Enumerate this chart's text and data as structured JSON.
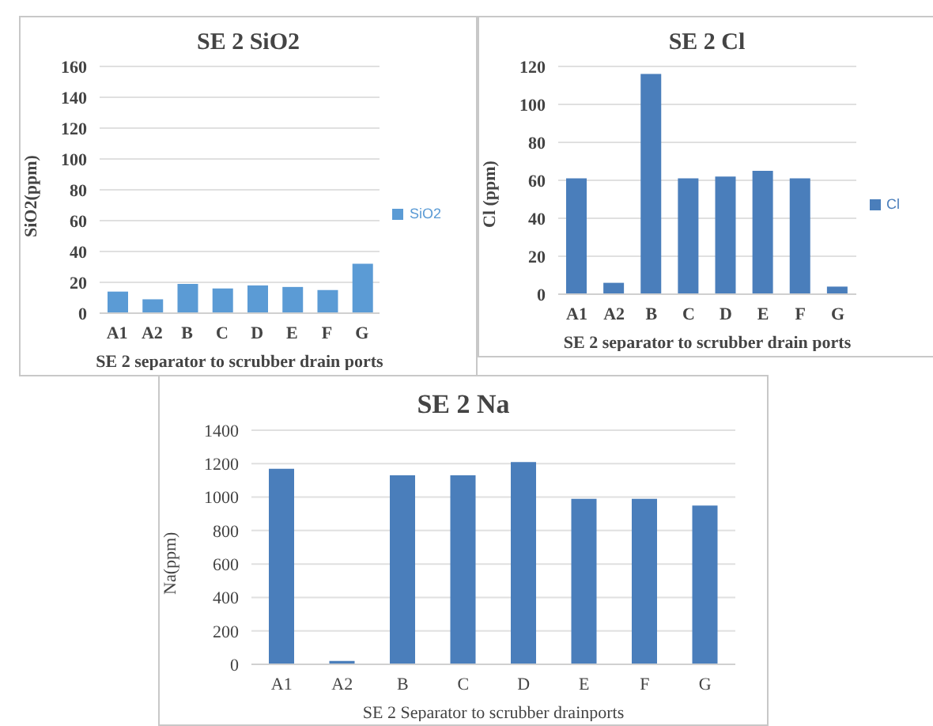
{
  "chart_data": [
    {
      "type": "bar",
      "title": "SE 2 SiO2",
      "xlabel": "SE 2 separator to scrubber drain ports",
      "ylabel": "SiO2(ppm)",
      "categories": [
        "A1",
        "A2",
        "B",
        "C",
        "D",
        "E",
        "F",
        "G"
      ],
      "series": [
        {
          "name": "SiO2",
          "color": "#5b9bd5",
          "values": [
            14,
            9,
            19,
            16,
            18,
            17,
            15,
            32
          ]
        }
      ],
      "ylim": [
        0,
        160
      ],
      "yticks": [
        0,
        20,
        40,
        60,
        80,
        100,
        120,
        140,
        160
      ],
      "grid": "y",
      "legend": "right"
    },
    {
      "type": "bar",
      "title": "SE 2 Cl",
      "xlabel": "SE 2 separator to scrubber drain ports",
      "ylabel": "Cl (ppm)",
      "categories": [
        "A1",
        "A2",
        "B",
        "C",
        "D",
        "E",
        "F",
        "G"
      ],
      "series": [
        {
          "name": "Cl",
          "color": "#4a7ebb",
          "values": [
            61,
            6,
            116,
            61,
            62,
            65,
            61,
            4
          ]
        }
      ],
      "ylim": [
        0,
        120
      ],
      "yticks": [
        0,
        20,
        40,
        60,
        80,
        100,
        120
      ],
      "grid": "y",
      "legend": "right"
    },
    {
      "type": "bar",
      "title": "SE 2 Na",
      "xlabel": "SE 2 Separator to scrubber drainports",
      "ylabel": "Na(ppm)",
      "categories": [
        "A1",
        "A2",
        "B",
        "C",
        "D",
        "E",
        "F",
        "G"
      ],
      "color": "#4a7ebb",
      "values": [
        1170,
        20,
        1130,
        1130,
        1210,
        990,
        990,
        950
      ],
      "ylim": [
        0,
        1400
      ],
      "yticks": [
        0,
        200,
        400,
        600,
        800,
        1000,
        1200,
        1400
      ],
      "grid": "y"
    }
  ]
}
